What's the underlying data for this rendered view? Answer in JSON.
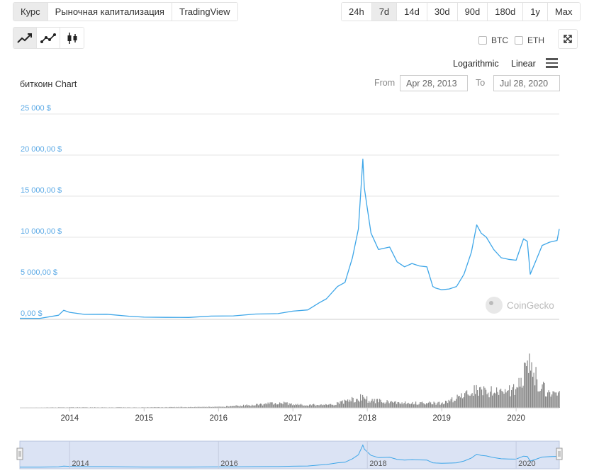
{
  "tabs": [
    {
      "label": "Курс",
      "active": true
    },
    {
      "label": "Рыночная капитализация",
      "active": false
    },
    {
      "label": "TradingView",
      "active": false
    }
  ],
  "periods": [
    {
      "label": "24h",
      "active": false
    },
    {
      "label": "7d",
      "active": true
    },
    {
      "label": "14d",
      "active": false
    },
    {
      "label": "30d",
      "active": false
    },
    {
      "label": "90d",
      "active": false
    },
    {
      "label": "180d",
      "active": false
    },
    {
      "label": "1y",
      "active": false
    },
    {
      "label": "Max",
      "active": false
    }
  ],
  "chart_type_icons": [
    "line-chart-icon",
    "line-points-chart-icon",
    "candlestick-chart-icon"
  ],
  "compare": [
    {
      "label": "BTC",
      "checked": false
    },
    {
      "label": "ETH",
      "checked": false
    }
  ],
  "scale": {
    "logarithmic": "Logarithmic",
    "linear": "Linear"
  },
  "range": {
    "from_label": "From",
    "from_value": "Apr 28, 2013",
    "to_label": "To",
    "to_value": "Jul 28, 2020"
  },
  "watermark": "CoinGecko",
  "colors": {
    "price_line": "#3ea6e8",
    "volume": "#888888",
    "navigator_fill": "#dbe3f4",
    "axis_label": "#5aa9e6"
  },
  "chart_data": {
    "type": "line",
    "title": "биткоин Chart",
    "x_start": 2013.33,
    "x_end": 2020.58,
    "x_tick_labels": [
      "2014",
      "2015",
      "2016",
      "2017",
      "2018",
      "2019",
      "2020"
    ],
    "y_tick_labels": [
      "0,00 $",
      "5 000,00 $",
      "10 000,00 $",
      "15 000,00 $",
      "20 000,00 $",
      "25 000 $"
    ],
    "y_tick_values": [
      0,
      5000,
      10000,
      15000,
      20000,
      25000
    ],
    "ylim": [
      0,
      25000
    ],
    "price_series": {
      "x": [
        2013.33,
        2013.6,
        2013.85,
        2013.92,
        2014.0,
        2014.2,
        2014.5,
        2014.8,
        2015.0,
        2015.3,
        2015.6,
        2015.9,
        2016.2,
        2016.5,
        2016.8,
        2017.0,
        2017.2,
        2017.35,
        2017.45,
        2017.6,
        2017.7,
        2017.8,
        2017.88,
        2017.94,
        2017.96,
        2018.0,
        2018.05,
        2018.1,
        2018.15,
        2018.3,
        2018.4,
        2018.5,
        2018.6,
        2018.7,
        2018.8,
        2018.88,
        2018.92,
        2019.0,
        2019.1,
        2019.2,
        2019.3,
        2019.4,
        2019.47,
        2019.53,
        2019.6,
        2019.7,
        2019.8,
        2019.9,
        2020.0,
        2020.1,
        2020.15,
        2020.19,
        2020.25,
        2020.35,
        2020.45,
        2020.55,
        2020.58
      ],
      "y": [
        130,
        120,
        500,
        1100,
        850,
        600,
        620,
        380,
        270,
        240,
        230,
        400,
        420,
        650,
        700,
        1000,
        1150,
        2000,
        2500,
        4000,
        4500,
        7500,
        11000,
        19500,
        16000,
        13500,
        10500,
        9500,
        8500,
        8800,
        7000,
        6400,
        6800,
        6500,
        6400,
        4000,
        3800,
        3600,
        3700,
        4000,
        5500,
        8200,
        11500,
        10500,
        10000,
        8500,
        7500,
        7300,
        7200,
        9800,
        9500,
        5500,
        6800,
        9000,
        9400,
        9600,
        11000
      ]
    },
    "volume_series": {
      "x": [
        2013.33,
        2014.0,
        2015.0,
        2016.0,
        2016.9,
        2017.0,
        2017.5,
        2017.9,
        2017.96,
        2018.0,
        2018.5,
        2019.0,
        2019.2,
        2019.5,
        2019.8,
        2020.0,
        2020.19,
        2020.3,
        2020.5,
        2020.58
      ],
      "y": [
        0.5,
        1,
        1,
        2,
        10,
        6,
        6,
        20,
        27,
        15,
        10,
        9,
        20,
        38,
        30,
        42,
        90,
        45,
        25,
        35
      ]
    }
  },
  "navigator": {
    "x_tick_labels": [
      "2014",
      "2016",
      "2018",
      "2020"
    ]
  }
}
